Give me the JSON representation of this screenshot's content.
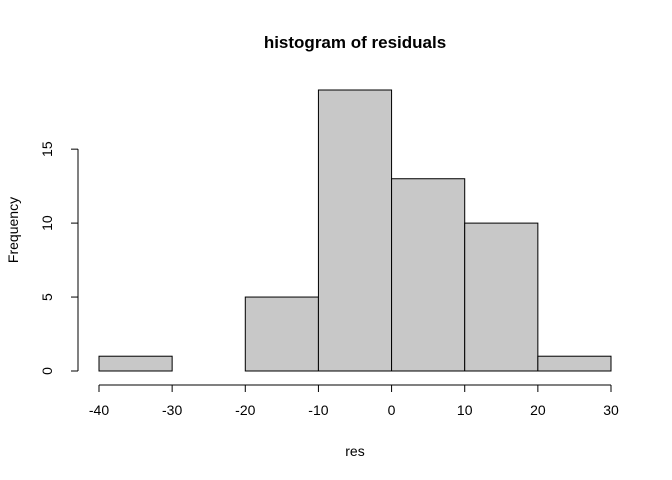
{
  "chart_data": {
    "type": "bar",
    "subtype": "histogram",
    "title": "histogram of residuals",
    "xlabel": "res",
    "ylabel": "Frequency",
    "bins": [
      {
        "start": -40,
        "end": -30,
        "count": 1
      },
      {
        "start": -30,
        "end": -20,
        "count": 0
      },
      {
        "start": -20,
        "end": -10,
        "count": 5
      },
      {
        "start": -10,
        "end": 0,
        "count": 19
      },
      {
        "start": 0,
        "end": 10,
        "count": 13
      },
      {
        "start": 10,
        "end": 20,
        "count": 10
      },
      {
        "start": 20,
        "end": 30,
        "count": 1
      }
    ],
    "xlim": [
      -40,
      30
    ],
    "ylim": [
      0,
      19
    ],
    "x_ticks": [
      "-40",
      "-30",
      "-20",
      "-10",
      "0",
      "10",
      "20",
      "30"
    ],
    "y_ticks": [
      "0",
      "5",
      "10",
      "15"
    ],
    "bar_color": "#c8c8c8",
    "edge_color": "#000000",
    "grid": false
  }
}
